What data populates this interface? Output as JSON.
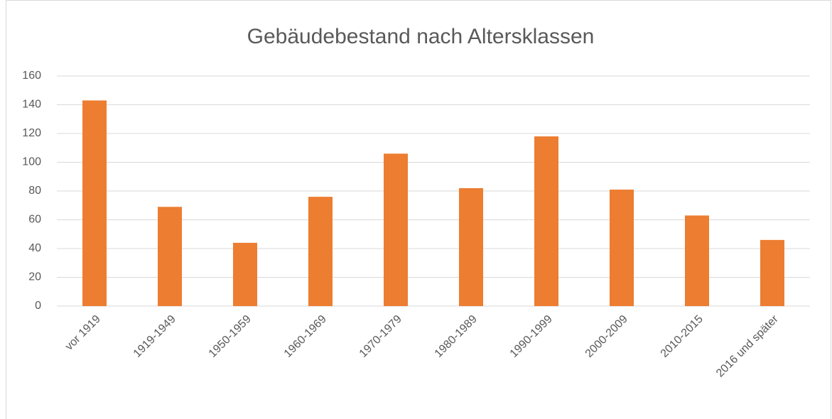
{
  "chart_data": {
    "type": "bar",
    "title": "Gebäudebestand nach Altersklassen",
    "categories": [
      "vor 1919",
      "1919-1949",
      "1950-1959",
      "1960-1969",
      "1970-1979",
      "1980-1989",
      "1990-1999",
      "2000-2009",
      "2010-2015",
      "2016 und später"
    ],
    "values": [
      143,
      69,
      44,
      76,
      106,
      82,
      118,
      81,
      63,
      46
    ],
    "color": "#ed7d31",
    "ylim": [
      0,
      160
    ],
    "yticks": [
      0,
      20,
      40,
      60,
      80,
      100,
      120,
      140,
      160
    ],
    "grid": true
  }
}
